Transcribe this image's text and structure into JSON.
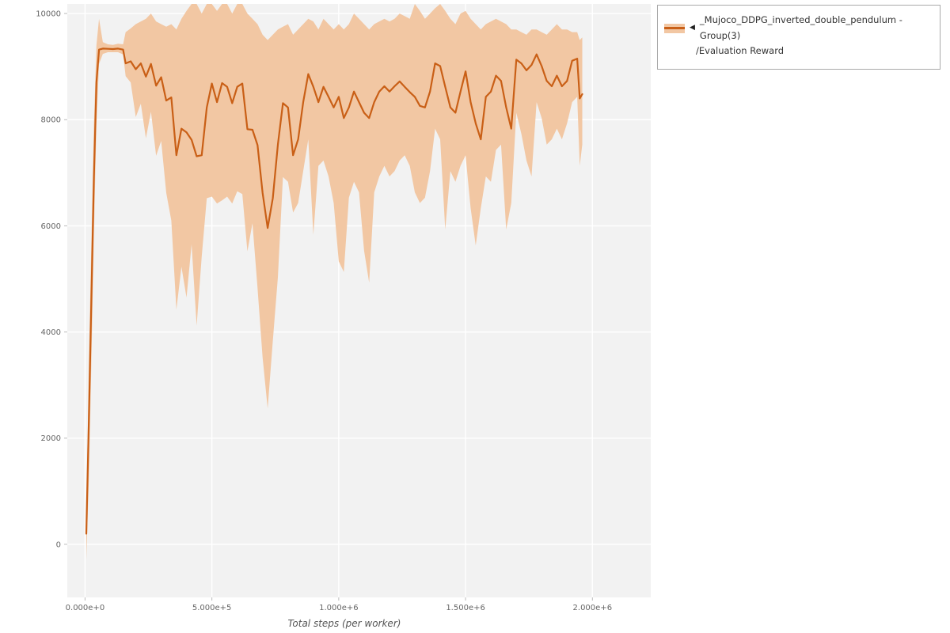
{
  "legend": {
    "marker": "◀",
    "line1": "_Mujoco_DDPG_inverted_double_pendulum - Group(3)",
    "line2": "/Evaluation Reward"
  },
  "colors": {
    "line": "#c95f16",
    "band": "#f2c7a3",
    "panel": "#f2f2f2",
    "grid": "#ffffff",
    "tick_text": "#666666"
  },
  "chart_data": {
    "type": "line",
    "title": "",
    "xlabel": "Total steps (per worker)",
    "ylabel": "",
    "legend_position": "top-right-outside",
    "grid": true,
    "xlim": [
      -70000,
      2230000
    ],
    "ylim": [
      -1000,
      10180
    ],
    "x_ticks": [
      {
        "value": 0,
        "label": "0.000e+0"
      },
      {
        "value": 500000,
        "label": "5.000e+5"
      },
      {
        "value": 1000000,
        "label": "1.000e+6"
      },
      {
        "value": 1500000,
        "label": "1.500e+6"
      },
      {
        "value": 2000000,
        "label": "2.000e+6"
      }
    ],
    "y_ticks": [
      {
        "value": 0,
        "label": "0"
      },
      {
        "value": 2000,
        "label": "2000"
      },
      {
        "value": 4000,
        "label": "4000"
      },
      {
        "value": 6000,
        "label": "6000"
      },
      {
        "value": 8000,
        "label": "8000"
      },
      {
        "value": 10000,
        "label": "10000"
      }
    ],
    "series": [
      {
        "name": "_Mujoco_DDPG_inverted_double_pendulum - Group(3)/Evaluation Reward",
        "color": "#c95f16",
        "band_color": "#f2c7a3",
        "x": [
          5000,
          15000,
          25000,
          35000,
          45000,
          55000,
          70000,
          90000,
          110000,
          130000,
          150000,
          160000,
          180000,
          200000,
          220000,
          240000,
          260000,
          280000,
          300000,
          320000,
          340000,
          360000,
          380000,
          400000,
          420000,
          440000,
          460000,
          480000,
          500000,
          520000,
          540000,
          560000,
          580000,
          600000,
          620000,
          640000,
          660000,
          680000,
          700000,
          720000,
          740000,
          760000,
          780000,
          800000,
          820000,
          840000,
          860000,
          880000,
          900000,
          920000,
          940000,
          960000,
          980000,
          1000000,
          1020000,
          1040000,
          1060000,
          1080000,
          1100000,
          1120000,
          1140000,
          1160000,
          1180000,
          1200000,
          1220000,
          1240000,
          1260000,
          1280000,
          1300000,
          1320000,
          1340000,
          1360000,
          1380000,
          1400000,
          1420000,
          1440000,
          1460000,
          1480000,
          1500000,
          1520000,
          1540000,
          1560000,
          1580000,
          1600000,
          1620000,
          1640000,
          1660000,
          1680000,
          1700000,
          1720000,
          1740000,
          1760000,
          1780000,
          1800000,
          1820000,
          1840000,
          1860000,
          1880000,
          1900000,
          1920000,
          1940000,
          1950000,
          1960000
        ],
        "mean": [
          200,
          2300,
          4600,
          6900,
          8700,
          9320,
          9340,
          9335,
          9330,
          9340,
          9320,
          9060,
          9100,
          8950,
          9060,
          8810,
          9050,
          8640,
          8800,
          8360,
          8420,
          7330,
          7830,
          7760,
          7620,
          7310,
          7330,
          8230,
          8680,
          8330,
          8690,
          8620,
          8310,
          8620,
          8680,
          7820,
          7810,
          7520,
          6620,
          5960,
          6520,
          7530,
          8310,
          8230,
          7330,
          7630,
          8330,
          8860,
          8620,
          8330,
          8620,
          8430,
          8230,
          8430,
          8030,
          8230,
          8530,
          8330,
          8130,
          8030,
          8330,
          8530,
          8630,
          8530,
          8630,
          8720,
          8620,
          8520,
          8430,
          8260,
          8230,
          8530,
          9060,
          9010,
          8620,
          8230,
          8130,
          8530,
          8910,
          8330,
          7930,
          7630,
          8430,
          8530,
          8830,
          8730,
          8230,
          7830,
          9130,
          9060,
          8930,
          9030,
          9230,
          9010,
          8730,
          8630,
          8830,
          8630,
          8730,
          9110,
          9150,
          8400,
          8480
        ],
        "lower": [
          -300,
          1200,
          3400,
          5800,
          7900,
          9050,
          9240,
          9270,
          9270,
          9270,
          9230,
          8820,
          8700,
          8050,
          8300,
          7650,
          8150,
          7320,
          7600,
          6620,
          6100,
          4420,
          5230,
          4650,
          5650,
          4120,
          5420,
          6520,
          6550,
          6420,
          6480,
          6550,
          6420,
          6650,
          6600,
          5520,
          6050,
          4830,
          3520,
          2560,
          3830,
          5030,
          6920,
          6830,
          6250,
          6430,
          7030,
          7630,
          5830,
          7130,
          7230,
          6930,
          6430,
          5330,
          5130,
          6530,
          6830,
          6630,
          5530,
          4930,
          6630,
          6930,
          7130,
          6930,
          7030,
          7230,
          7330,
          7130,
          6630,
          6430,
          6530,
          7030,
          7830,
          7630,
          5930,
          7030,
          6830,
          7130,
          7330,
          6330,
          5630,
          6330,
          6930,
          6830,
          7430,
          7530,
          5930,
          6430,
          8130,
          7730,
          7230,
          6930,
          8330,
          8030,
          7530,
          7630,
          7830,
          7630,
          7930,
          8330,
          8430,
          7130,
          7530
        ],
        "upper": [
          550,
          3400,
          5700,
          7900,
          9400,
          9900,
          9460,
          9420,
          9410,
          9430,
          9420,
          9650,
          9720,
          9800,
          9850,
          9900,
          10000,
          9850,
          9800,
          9750,
          9800,
          9700,
          9900,
          10050,
          10180,
          10180,
          10000,
          10180,
          10180,
          10050,
          10180,
          10180,
          10000,
          10180,
          10180,
          10000,
          9900,
          9800,
          9600,
          9500,
          9600,
          9700,
          9750,
          9800,
          9600,
          9700,
          9800,
          9900,
          9850,
          9700,
          9900,
          9800,
          9700,
          9800,
          9700,
          9800,
          10000,
          9900,
          9800,
          9700,
          9800,
          9850,
          9900,
          9850,
          9900,
          10000,
          9950,
          9900,
          10180,
          10050,
          9900,
          10000,
          10100,
          10180,
          10050,
          9900,
          9800,
          10000,
          10050,
          9900,
          9800,
          9700,
          9800,
          9850,
          9900,
          9850,
          9800,
          9700,
          9700,
          9650,
          9600,
          9700,
          9700,
          9650,
          9600,
          9700,
          9800,
          9700,
          9700,
          9650,
          9650,
          9500,
          9550
        ]
      }
    ]
  }
}
